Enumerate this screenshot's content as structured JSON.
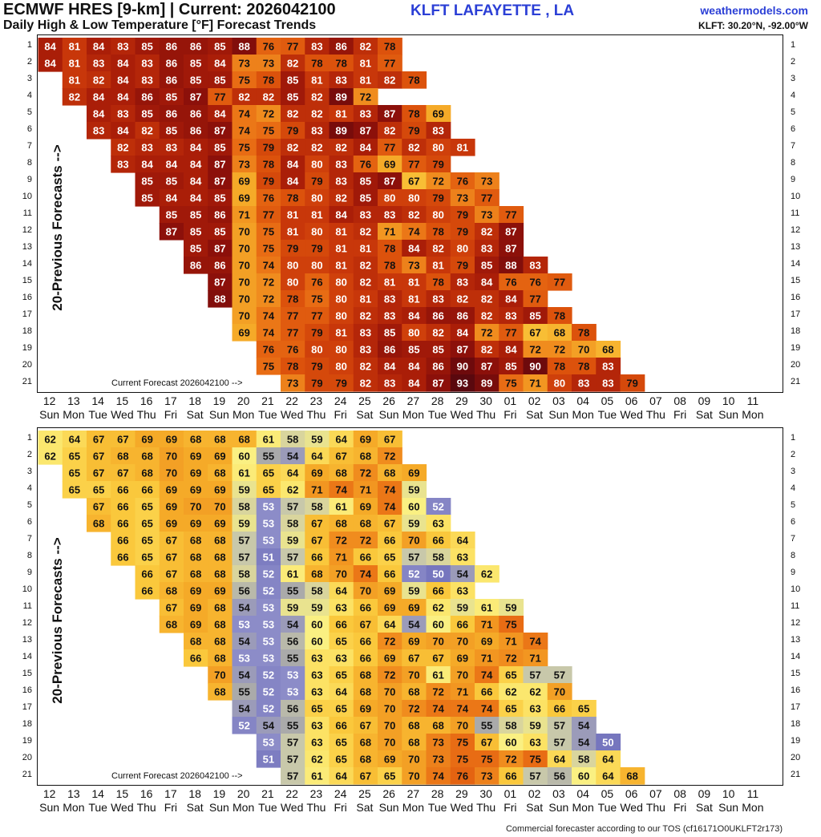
{
  "header": {
    "title": "ECMWF HRES [9-km] | Current: 2026042100",
    "station": "KLFT LAFAYETTE      , LA",
    "site": "weathermodels.com",
    "subtitle": "Daily High & Low Temperature [°F] Forecast Trends",
    "coords": "KLFT: 30.20°N, -92.00°W"
  },
  "footer": "Commercial forecaster according to our TOS (cf16171O0UKLFT2r173)",
  "chart_data": [
    {
      "type": "heatmap",
      "name": "Daily High",
      "ylabel": "20-Previous Forecasts -->",
      "annotation": "Current Forecast 2026042100 -->",
      "x_dates": [
        "12",
        "13",
        "14",
        "15",
        "16",
        "17",
        "18",
        "19",
        "20",
        "21",
        "22",
        "23",
        "24",
        "25",
        "26",
        "27",
        "28",
        "29",
        "30",
        "01",
        "02",
        "03",
        "04",
        "05",
        "06",
        "07",
        "08",
        "09",
        "10",
        "11"
      ],
      "x_days": [
        "Sun",
        "Mon",
        "Tue",
        "Wed",
        "Thu",
        "Fri",
        "Sat",
        "Sun",
        "Mon",
        "Tue",
        "Wed",
        "Thu",
        "Fri",
        "Sat",
        "Sun",
        "Mon",
        "Tue",
        "Wed",
        "Thu",
        "Fri",
        "Sat",
        "Sun",
        "Mon",
        "Tue",
        "Wed",
        "Thu",
        "Fri",
        "Sat",
        "Sun",
        "Mon"
      ],
      "y_rows": [
        "1",
        "2",
        "3",
        "4",
        "5",
        "6",
        "7",
        "8",
        "9",
        "10",
        "11",
        "12",
        "13",
        "14",
        "15",
        "16",
        "17",
        "18",
        "19",
        "20",
        "21"
      ],
      "rows": [
        {
          "start": 0,
          "values": [
            84,
            81,
            84,
            83,
            85,
            86,
            86,
            85,
            88,
            76,
            77,
            83,
            86,
            82,
            78
          ]
        },
        {
          "start": 0,
          "values": [
            84,
            81,
            83,
            84,
            83,
            86,
            85,
            84,
            73,
            73,
            82,
            78,
            78,
            81,
            77
          ]
        },
        {
          "start": 1,
          "values": [
            81,
            82,
            84,
            83,
            86,
            85,
            85,
            75,
            78,
            85,
            81,
            83,
            81,
            82,
            78
          ]
        },
        {
          "start": 1,
          "values": [
            82,
            84,
            84,
            86,
            85,
            87,
            77,
            82,
            82,
            85,
            82,
            89,
            72
          ]
        },
        {
          "start": 2,
          "values": [
            84,
            83,
            85,
            86,
            86,
            84,
            74,
            72,
            82,
            82,
            81,
            83,
            87,
            78,
            69
          ]
        },
        {
          "start": 2,
          "values": [
            83,
            84,
            82,
            85,
            86,
            87,
            74,
            75,
            79,
            83,
            89,
            87,
            82,
            79,
            83
          ]
        },
        {
          "start": 3,
          "values": [
            82,
            83,
            83,
            84,
            85,
            75,
            79,
            82,
            82,
            82,
            84,
            77,
            82,
            80,
            81
          ]
        },
        {
          "start": 3,
          "values": [
            83,
            84,
            84,
            84,
            87,
            73,
            78,
            84,
            80,
            83,
            76,
            69,
            77,
            79
          ]
        },
        {
          "start": 4,
          "values": [
            85,
            85,
            84,
            87,
            69,
            79,
            84,
            79,
            83,
            85,
            87,
            67,
            72,
            76,
            73
          ]
        },
        {
          "start": 4,
          "values": [
            85,
            84,
            84,
            85,
            69,
            76,
            78,
            80,
            82,
            85,
            80,
            80,
            79,
            73,
            77
          ]
        },
        {
          "start": 5,
          "values": [
            85,
            85,
            86,
            71,
            77,
            81,
            81,
            84,
            83,
            83,
            82,
            80,
            79,
            73,
            77
          ]
        },
        {
          "start": 5,
          "values": [
            87,
            85,
            85,
            70,
            75,
            81,
            80,
            81,
            82,
            71,
            74,
            78,
            79,
            82,
            87
          ]
        },
        {
          "start": 6,
          "values": [
            85,
            87,
            70,
            75,
            79,
            79,
            81,
            81,
            78,
            84,
            82,
            80,
            83,
            87
          ]
        },
        {
          "start": 6,
          "values": [
            86,
            86,
            70,
            74,
            80,
            80,
            81,
            82,
            78,
            73,
            81,
            79,
            85,
            88,
            83
          ]
        },
        {
          "start": 7,
          "values": [
            87,
            70,
            72,
            80,
            76,
            80,
            82,
            81,
            81,
            78,
            83,
            84,
            76,
            76,
            77
          ]
        },
        {
          "start": 7,
          "values": [
            88,
            70,
            72,
            78,
            75,
            80,
            81,
            83,
            81,
            83,
            82,
            82,
            84,
            77
          ]
        },
        {
          "start": 8,
          "values": [
            70,
            74,
            77,
            77,
            80,
            82,
            83,
            84,
            86,
            86,
            82,
            83,
            85,
            78
          ]
        },
        {
          "start": 8,
          "values": [
            69,
            74,
            77,
            79,
            81,
            83,
            85,
            80,
            82,
            84,
            72,
            77,
            67,
            68,
            78
          ]
        },
        {
          "start": 9,
          "values": [
            76,
            76,
            80,
            80,
            83,
            86,
            85,
            85,
            87,
            82,
            84,
            72,
            72,
            70,
            68
          ]
        },
        {
          "start": 9,
          "values": [
            75,
            78,
            79,
            80,
            82,
            84,
            84,
            86,
            90,
            87,
            85,
            90,
            78,
            78,
            83
          ]
        },
        {
          "start": 10,
          "values": [
            73,
            79,
            79,
            82,
            83,
            84,
            87,
            93,
            89,
            75,
            71,
            80,
            83,
            83,
            79
          ]
        }
      ]
    },
    {
      "type": "heatmap",
      "name": "Daily Low",
      "ylabel": "20-Previous Forecasts -->",
      "annotation": "Current Forecast 2026042100 -->",
      "x_dates": [
        "12",
        "13",
        "14",
        "15",
        "16",
        "17",
        "18",
        "19",
        "20",
        "21",
        "22",
        "23",
        "24",
        "25",
        "26",
        "27",
        "28",
        "29",
        "30",
        "01",
        "02",
        "03",
        "04",
        "05",
        "06",
        "07",
        "08",
        "09",
        "10",
        "11"
      ],
      "x_days": [
        "Sun",
        "Mon",
        "Tue",
        "Wed",
        "Thu",
        "Fri",
        "Sat",
        "Sun",
        "Mon",
        "Tue",
        "Wed",
        "Thu",
        "Fri",
        "Sat",
        "Sun",
        "Mon",
        "Tue",
        "Wed",
        "Thu",
        "Fri",
        "Sat",
        "Sun",
        "Mon",
        "Tue",
        "Wed",
        "Thu",
        "Fri",
        "Sat",
        "Sun",
        "Mon"
      ],
      "y_rows": [
        "1",
        "2",
        "3",
        "4",
        "5",
        "6",
        "7",
        "8",
        "9",
        "10",
        "11",
        "12",
        "13",
        "14",
        "15",
        "16",
        "17",
        "18",
        "19",
        "20",
        "21"
      ],
      "rows": [
        {
          "start": 0,
          "values": [
            62,
            64,
            67,
            67,
            69,
            69,
            68,
            68,
            68,
            61,
            58,
            59,
            64,
            69,
            67
          ]
        },
        {
          "start": 0,
          "values": [
            62,
            65,
            67,
            68,
            68,
            70,
            69,
            69,
            60,
            55,
            54,
            64,
            67,
            68,
            72
          ]
        },
        {
          "start": 1,
          "values": [
            65,
            67,
            67,
            68,
            70,
            69,
            68,
            61,
            65,
            64,
            69,
            68,
            72,
            68,
            69
          ]
        },
        {
          "start": 1,
          "values": [
            65,
            65,
            66,
            66,
            69,
            69,
            69,
            59,
            65,
            62,
            71,
            74,
            71,
            74,
            59
          ]
        },
        {
          "start": 2,
          "values": [
            67,
            66,
            65,
            69,
            70,
            70,
            58,
            53,
            57,
            58,
            61,
            69,
            74,
            60,
            52
          ]
        },
        {
          "start": 2,
          "values": [
            68,
            66,
            65,
            69,
            69,
            69,
            59,
            53,
            58,
            67,
            68,
            68,
            67,
            59,
            63
          ]
        },
        {
          "start": 3,
          "values": [
            66,
            65,
            67,
            68,
            68,
            57,
            53,
            59,
            67,
            72,
            72,
            66,
            70,
            66,
            64
          ]
        },
        {
          "start": 3,
          "values": [
            66,
            65,
            67,
            68,
            68,
            57,
            51,
            57,
            66,
            71,
            66,
            65,
            57,
            58,
            63
          ]
        },
        {
          "start": 4,
          "values": [
            66,
            67,
            68,
            68,
            58,
            52,
            61,
            68,
            70,
            74,
            66,
            52,
            50,
            54,
            62
          ]
        },
        {
          "start": 4,
          "values": [
            66,
            68,
            69,
            69,
            56,
            52,
            55,
            58,
            64,
            70,
            69,
            59,
            66,
            63
          ]
        },
        {
          "start": 5,
          "values": [
            67,
            69,
            68,
            54,
            53,
            59,
            59,
            63,
            66,
            69,
            69,
            62,
            59,
            61,
            59
          ]
        },
        {
          "start": 5,
          "values": [
            68,
            69,
            68,
            53,
            53,
            54,
            60,
            66,
            67,
            64,
            54,
            60,
            66,
            71,
            75
          ]
        },
        {
          "start": 6,
          "values": [
            68,
            68,
            54,
            53,
            56,
            60,
            65,
            66,
            72,
            69,
            70,
            70,
            69,
            71,
            74
          ]
        },
        {
          "start": 6,
          "values": [
            66,
            68,
            53,
            53,
            55,
            63,
            63,
            66,
            69,
            67,
            67,
            69,
            71,
            72,
            71
          ]
        },
        {
          "start": 7,
          "values": [
            70,
            54,
            52,
            53,
            63,
            65,
            68,
            72,
            70,
            61,
            70,
            74,
            65,
            57,
            57
          ]
        },
        {
          "start": 7,
          "values": [
            68,
            55,
            52,
            53,
            63,
            64,
            68,
            70,
            68,
            72,
            71,
            66,
            62,
            62,
            70
          ]
        },
        {
          "start": 8,
          "values": [
            54,
            52,
            56,
            65,
            65,
            69,
            70,
            72,
            74,
            74,
            74,
            65,
            63,
            66,
            65
          ]
        },
        {
          "start": 8,
          "values": [
            52,
            54,
            55,
            63,
            66,
            67,
            70,
            68,
            68,
            70,
            55,
            58,
            59,
            57,
            54
          ]
        },
        {
          "start": 9,
          "values": [
            53,
            57,
            63,
            65,
            68,
            70,
            68,
            73,
            75,
            67,
            60,
            63,
            57,
            54,
            50
          ]
        },
        {
          "start": 9,
          "values": [
            51,
            57,
            62,
            65,
            68,
            69,
            70,
            73,
            75,
            75,
            72,
            75,
            64,
            58,
            64
          ]
        },
        {
          "start": 10,
          "values": [
            57,
            61,
            64,
            67,
            65,
            70,
            74,
            76,
            73,
            66,
            57,
            56,
            60,
            64,
            68
          ]
        }
      ]
    }
  ]
}
